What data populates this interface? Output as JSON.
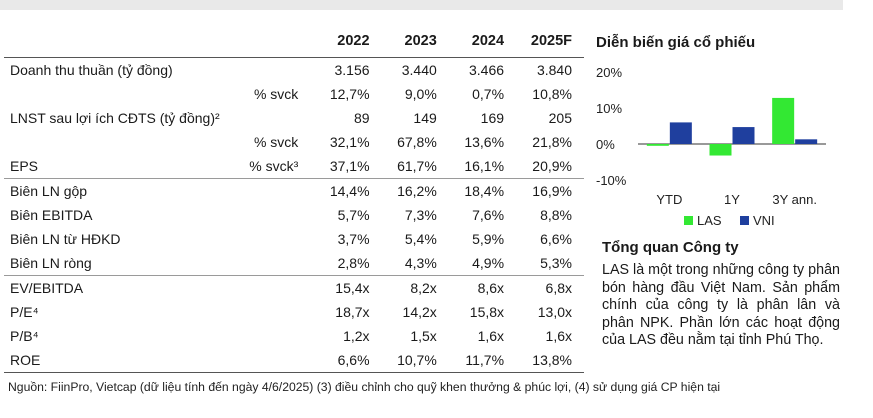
{
  "table": {
    "years": [
      "2022",
      "2023",
      "2024",
      "2025F"
    ],
    "rows": [
      {
        "label": "Doanh thu thuần (tỷ đồng)",
        "sub": "",
        "values": [
          "3.156",
          "3.440",
          "3.466",
          "3.840"
        ]
      },
      {
        "label": "",
        "sub": "% svck",
        "values": [
          "12,7%",
          "9,0%",
          "0,7%",
          "10,8%"
        ]
      },
      {
        "label": "LNST sau lợi ích CĐTS (tỷ đồng)²",
        "sub": "",
        "values": [
          "89",
          "149",
          "169",
          "205"
        ]
      },
      {
        "label": "",
        "sub": "% svck",
        "values": [
          "32,1%",
          "67,8%",
          "13,6%",
          "21,8%"
        ]
      },
      {
        "label": "EPS",
        "sub": "% svck³",
        "values": [
          "37,1%",
          "61,7%",
          "16,1%",
          "20,9%"
        ]
      },
      {
        "label": "Biên LN gộp",
        "sub": "",
        "values": [
          "14,4%",
          "16,2%",
          "18,4%",
          "16,9%"
        ]
      },
      {
        "label": "Biên EBITDA",
        "sub": "",
        "values": [
          "5,7%",
          "7,3%",
          "7,6%",
          "8,8%"
        ]
      },
      {
        "label": "Biên LN từ HĐKD",
        "sub": "",
        "values": [
          "3,7%",
          "5,4%",
          "5,9%",
          "6,6%"
        ]
      },
      {
        "label": "Biên LN ròng",
        "sub": "",
        "values": [
          "2,8%",
          "4,3%",
          "4,9%",
          "5,3%"
        ]
      },
      {
        "label": "EV/EBITDA",
        "sub": "",
        "values": [
          "15,4x",
          "8,2x",
          "8,6x",
          "6,8x"
        ]
      },
      {
        "label": "P/E⁴",
        "sub": "",
        "values": [
          "18,7x",
          "14,2x",
          "15,8x",
          "13,0x"
        ]
      },
      {
        "label": "P/B⁴",
        "sub": "",
        "values": [
          "1,2x",
          "1,5x",
          "1,6x",
          "1,6x"
        ]
      },
      {
        "label": "ROE",
        "sub": "",
        "values": [
          "6,6%",
          "10,7%",
          "11,7%",
          "13,8%"
        ]
      }
    ]
  },
  "source_note": "Nguồn: FiinPro, Vietcap (dữ liệu tính đến ngày 4/6/2025) (3) điều chỉnh cho quỹ khen thưởng & phúc lợi, (4) sử dụng giá CP hiện tại",
  "chart_data": {
    "type": "bar",
    "title": "Diễn biến giá cổ phiếu",
    "categories": [
      "YTD",
      "1Y",
      "3Y ann."
    ],
    "series": [
      {
        "name": "LAS",
        "values": [
          -0.5,
          -3.2,
          12.8
        ],
        "color": "#33e833"
      },
      {
        "name": "VNI",
        "values": [
          6.0,
          4.7,
          1.3
        ],
        "color": "#1f3f9e"
      }
    ],
    "ylim": [
      -10,
      20
    ],
    "yticks": [
      20,
      10,
      0,
      -10
    ],
    "ytick_labels": [
      "20%",
      "10%",
      "0%",
      "-10%"
    ],
    "legend_position": "bottom",
    "grid": false
  },
  "overview": {
    "title": "Tổng quan Công ty",
    "text": "LAS là một trong những công ty phân bón hàng đầu Việt Nam. Sản phẩm chính của công ty là phân lân và phân NPK. Phần lớn các hoạt động của LAS đều nằm tại tỉnh Phú Thọ."
  }
}
